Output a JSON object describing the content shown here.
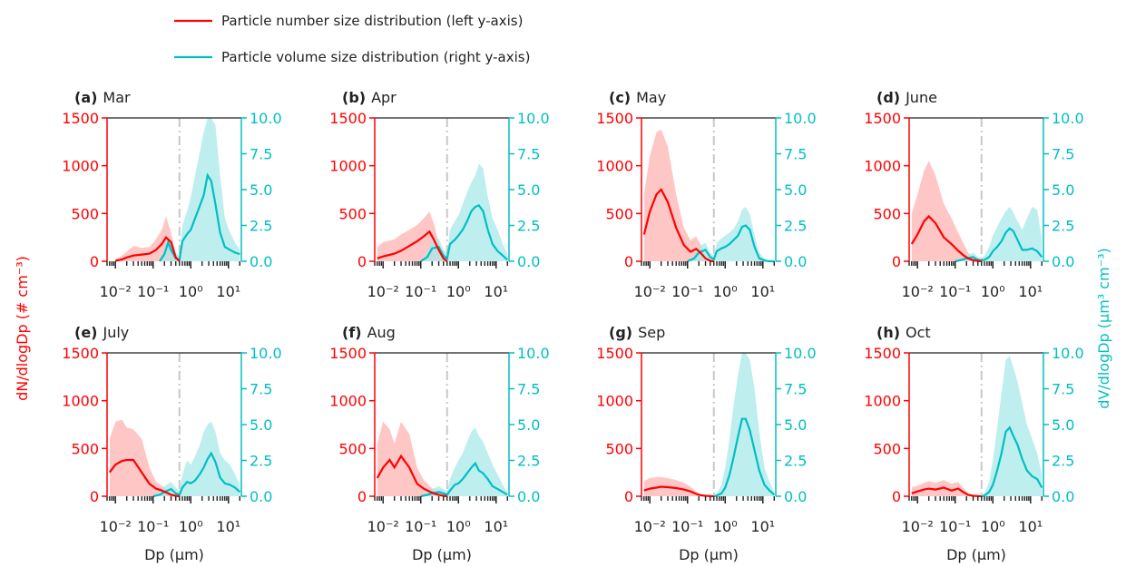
{
  "colors": {
    "number": "#ff0000",
    "volume": "#00bfc4",
    "number_band": "#ffb3b3",
    "volume_band": "#a8e8e8",
    "cutoff": "#c8c8c8"
  },
  "legend": {
    "number_label": "Particle number size distribution (left y-axis)",
    "volume_label": "Particle volume size distribution (right y-axis)"
  },
  "axes": {
    "xlabel": "Dp (μm)",
    "left_ylabel": "dN/dlogDp (# cm⁻³)",
    "right_ylabel": "dV/dlogDp (μm³ cm⁻³)",
    "x_scale": "log",
    "x_range_um": [
      0.006,
      22
    ],
    "left_ylim": [
      0,
      1500
    ],
    "right_ylim": [
      0,
      10
    ],
    "left_ticks": [
      "0",
      "500",
      "1000",
      "1500"
    ],
    "right_ticks": [
      "0.0",
      "2.5",
      "5.0",
      "7.5",
      "10.0"
    ],
    "x_tick_labels": [
      "10⁻²",
      "10⁻¹",
      "10⁰",
      "10¹"
    ],
    "cutoff_dp_um": 0.5
  },
  "chart_data": [
    {
      "type": "line",
      "tag": "(a)",
      "month": "Mar",
      "number": {
        "x": [
          0.01,
          0.015,
          0.02,
          0.03,
          0.05,
          0.08,
          0.12,
          0.17,
          0.22,
          0.3,
          0.4,
          0.5
        ],
        "y": [
          5,
          20,
          40,
          60,
          70,
          80,
          120,
          180,
          250,
          200,
          40,
          0
        ],
        "upper": [
          20,
          60,
          100,
          160,
          140,
          150,
          230,
          330,
          470,
          300,
          80,
          0
        ]
      },
      "volume": {
        "x": [
          0.15,
          0.2,
          0.25,
          0.3,
          0.4,
          0.5,
          0.6,
          0.8,
          1.0,
          1.3,
          1.7,
          2.2,
          2.8,
          3.5,
          4.5,
          6,
          8,
          11,
          15,
          20
        ],
        "y": [
          0,
          0.5,
          1.3,
          0.8,
          0.2,
          0.1,
          1.4,
          1.9,
          2.2,
          3.0,
          3.8,
          4.6,
          6.0,
          5.6,
          4.0,
          2.0,
          1.0,
          0.8,
          0.6,
          0.5
        ],
        "upper": [
          0,
          0.9,
          1.7,
          1.3,
          0.6,
          0.4,
          2.5,
          3.5,
          4.5,
          6.0,
          7.5,
          9.0,
          10,
          10,
          9.5,
          6.0,
          3.0,
          2.0,
          1.3,
          0.8
        ]
      }
    },
    {
      "type": "line",
      "tag": "(b)",
      "month": "Apr",
      "number": {
        "x": [
          0.007,
          0.01,
          0.02,
          0.03,
          0.05,
          0.08,
          0.12,
          0.17,
          0.22,
          0.3,
          0.4,
          0.5
        ],
        "y": [
          30,
          50,
          80,
          110,
          160,
          210,
          260,
          310,
          230,
          120,
          30,
          0
        ],
        "upper": [
          150,
          200,
          230,
          280,
          330,
          380,
          450,
          520,
          400,
          200,
          50,
          0
        ]
      },
      "volume": {
        "x": [
          0.1,
          0.15,
          0.2,
          0.3,
          0.4,
          0.5,
          0.6,
          0.8,
          1.0,
          1.3,
          1.7,
          2.2,
          2.8,
          3.5,
          4.5,
          6,
          8,
          11,
          15,
          20
        ],
        "y": [
          0,
          0.3,
          0.9,
          1.0,
          0.4,
          0.2,
          1.2,
          1.5,
          1.8,
          2.2,
          2.8,
          3.5,
          3.8,
          3.9,
          3.5,
          2.2,
          1.2,
          0.7,
          0.4,
          0.1
        ],
        "upper": [
          0,
          0.6,
          1.4,
          1.6,
          0.8,
          0.5,
          2.2,
          2.8,
          3.2,
          4.0,
          4.8,
          5.5,
          6.0,
          6.8,
          6.5,
          4.5,
          3.0,
          2.2,
          1.2,
          0.5
        ]
      }
    },
    {
      "type": "line",
      "tag": "(c)",
      "month": "May",
      "number": {
        "x": [
          0.007,
          0.01,
          0.015,
          0.02,
          0.03,
          0.05,
          0.08,
          0.12,
          0.17,
          0.22,
          0.3,
          0.4,
          0.5
        ],
        "y": [
          280,
          520,
          700,
          750,
          620,
          350,
          170,
          100,
          130,
          90,
          30,
          5,
          0
        ],
        "upper": [
          700,
          1100,
          1350,
          1380,
          1200,
          700,
          350,
          220,
          260,
          180,
          60,
          10,
          0
        ]
      },
      "volume": {
        "x": [
          0.1,
          0.15,
          0.2,
          0.3,
          0.4,
          0.5,
          0.6,
          0.8,
          1.0,
          1.3,
          1.7,
          2.2,
          2.8,
          3.5,
          4.5,
          6,
          8,
          11,
          15,
          20
        ],
        "y": [
          0,
          0.2,
          0.6,
          0.8,
          0.3,
          0.15,
          0.7,
          0.9,
          1.0,
          1.2,
          1.5,
          1.8,
          2.4,
          2.5,
          2.2,
          1.0,
          0.2,
          0.05,
          0,
          0
        ],
        "upper": [
          0,
          0.4,
          1.0,
          1.3,
          0.6,
          0.4,
          1.3,
          1.6,
          1.8,
          2.0,
          2.3,
          2.8,
          3.6,
          3.8,
          3.3,
          1.8,
          0.6,
          0.2,
          0,
          0
        ]
      }
    },
    {
      "type": "line",
      "tag": "(d)",
      "month": "June",
      "number": {
        "x": [
          0.007,
          0.01,
          0.015,
          0.02,
          0.03,
          0.05,
          0.08,
          0.12,
          0.17,
          0.22,
          0.3,
          0.4,
          0.5
        ],
        "y": [
          180,
          280,
          420,
          470,
          400,
          250,
          180,
          110,
          60,
          30,
          10,
          5,
          0
        ],
        "upper": [
          500,
          700,
          950,
          1050,
          900,
          600,
          450,
          300,
          180,
          90,
          30,
          10,
          0
        ]
      },
      "volume": {
        "x": [
          0.1,
          0.15,
          0.2,
          0.3,
          0.4,
          0.5,
          0.6,
          0.8,
          1.0,
          1.3,
          1.7,
          2.2,
          2.8,
          3.5,
          4.5,
          6,
          8,
          11,
          15,
          20
        ],
        "y": [
          0,
          0.1,
          0.2,
          0.3,
          0.1,
          0.05,
          0.1,
          0.3,
          0.7,
          1.0,
          1.4,
          2.0,
          2.3,
          2.1,
          1.5,
          0.8,
          0.8,
          0.9,
          0.7,
          0.3
        ],
        "upper": [
          0,
          0.2,
          0.4,
          0.6,
          0.3,
          0.2,
          0.4,
          1.0,
          1.8,
          2.4,
          3.0,
          3.5,
          3.8,
          3.4,
          2.8,
          2.2,
          3.0,
          3.8,
          3.6,
          1.5
        ]
      }
    },
    {
      "type": "line",
      "tag": "(e)",
      "month": "July",
      "number": {
        "x": [
          0.007,
          0.01,
          0.015,
          0.02,
          0.03,
          0.05,
          0.08,
          0.12,
          0.17,
          0.22,
          0.3,
          0.4,
          0.5
        ],
        "y": [
          250,
          330,
          370,
          380,
          380,
          250,
          130,
          80,
          60,
          40,
          15,
          5,
          0
        ],
        "upper": [
          600,
          780,
          800,
          720,
          700,
          600,
          300,
          150,
          110,
          80,
          30,
          10,
          0
        ]
      },
      "volume": {
        "x": [
          0.1,
          0.15,
          0.2,
          0.3,
          0.4,
          0.5,
          0.6,
          0.8,
          1.0,
          1.3,
          1.7,
          2.2,
          2.8,
          3.5,
          4.5,
          6,
          8,
          11,
          15,
          20
        ],
        "y": [
          0,
          0.1,
          0.3,
          0.5,
          0.2,
          0.1,
          0.6,
          1.0,
          0.9,
          1.1,
          1.5,
          2.0,
          2.6,
          3.0,
          2.4,
          1.3,
          0.9,
          0.8,
          0.6,
          0.3
        ],
        "upper": [
          0,
          0.3,
          0.7,
          1.0,
          0.6,
          0.4,
          1.5,
          2.5,
          2.2,
          2.8,
          3.5,
          4.5,
          5.0,
          5.2,
          4.5,
          3.0,
          2.5,
          2.2,
          1.5,
          0.8
        ]
      }
    },
    {
      "type": "line",
      "tag": "(f)",
      "month": "Aug",
      "number": {
        "x": [
          0.007,
          0.01,
          0.015,
          0.02,
          0.03,
          0.05,
          0.08,
          0.12,
          0.17,
          0.22,
          0.3,
          0.4,
          0.5
        ],
        "y": [
          190,
          300,
          380,
          300,
          420,
          300,
          130,
          80,
          50,
          30,
          15,
          5,
          0
        ],
        "upper": [
          550,
          780,
          700,
          550,
          780,
          650,
          300,
          170,
          110,
          70,
          30,
          10,
          0
        ]
      },
      "volume": {
        "x": [
          0.1,
          0.15,
          0.2,
          0.3,
          0.4,
          0.5,
          0.6,
          0.8,
          1.0,
          1.3,
          1.7,
          2.2,
          2.8,
          3.5,
          4.5,
          6,
          8,
          11,
          15,
          20
        ],
        "y": [
          0,
          0.1,
          0.2,
          0.3,
          0.2,
          0.1,
          0.4,
          0.8,
          0.9,
          1.2,
          1.6,
          2.0,
          2.3,
          1.8,
          1.6,
          1.2,
          0.7,
          0.5,
          0.3,
          0.1
        ],
        "upper": [
          0,
          0.3,
          0.5,
          0.7,
          0.5,
          0.4,
          1.2,
          2.0,
          2.5,
          3.0,
          3.8,
          4.5,
          4.8,
          4.2,
          3.8,
          3.0,
          2.2,
          1.5,
          0.8,
          0.3
        ]
      }
    },
    {
      "type": "line",
      "tag": "(g)",
      "month": "Sep",
      "number": {
        "x": [
          0.007,
          0.01,
          0.015,
          0.02,
          0.03,
          0.05,
          0.08,
          0.12,
          0.17,
          0.22,
          0.3,
          0.4,
          0.5
        ],
        "y": [
          60,
          80,
          90,
          100,
          95,
          85,
          70,
          50,
          25,
          10,
          5,
          2,
          0
        ],
        "upper": [
          160,
          190,
          200,
          200,
          190,
          170,
          140,
          100,
          50,
          20,
          10,
          5,
          0
        ]
      },
      "volume": {
        "x": [
          0.5,
          0.6,
          0.8,
          1.0,
          1.3,
          1.7,
          2.2,
          2.8,
          3.5,
          4.5,
          6,
          8,
          11,
          15,
          20
        ],
        "y": [
          0,
          0.05,
          0.2,
          0.6,
          1.5,
          2.8,
          4.2,
          5.4,
          5.4,
          4.6,
          3.2,
          1.8,
          0.8,
          0.4,
          0.1
        ],
        "upper": [
          0,
          0.2,
          0.8,
          2.0,
          4.0,
          6.5,
          8.5,
          10,
          10,
          9.5,
          7.5,
          4.5,
          2.0,
          1.0,
          0.3
        ]
      }
    },
    {
      "type": "line",
      "tag": "(h)",
      "month": "Oct",
      "number": {
        "x": [
          0.007,
          0.01,
          0.015,
          0.02,
          0.03,
          0.05,
          0.08,
          0.12,
          0.17,
          0.22,
          0.3,
          0.4,
          0.5
        ],
        "y": [
          30,
          50,
          70,
          80,
          70,
          90,
          60,
          80,
          40,
          15,
          5,
          2,
          0
        ],
        "upper": [
          90,
          110,
          140,
          160,
          140,
          170,
          130,
          150,
          80,
          30,
          10,
          5,
          0
        ]
      },
      "volume": {
        "x": [
          0.5,
          0.6,
          0.8,
          1.0,
          1.3,
          1.7,
          2.2,
          2.8,
          3.5,
          4.5,
          6,
          8,
          11,
          15,
          20
        ],
        "y": [
          0,
          0.05,
          0.3,
          0.8,
          1.8,
          3.0,
          4.5,
          4.8,
          4.2,
          3.6,
          2.6,
          1.8,
          1.4,
          1.2,
          0.6
        ],
        "upper": [
          0,
          0.2,
          1.0,
          2.5,
          4.8,
          7.2,
          9.5,
          9.8,
          9.0,
          8.0,
          6.5,
          5.0,
          4.0,
          3.0,
          1.5
        ]
      }
    }
  ]
}
